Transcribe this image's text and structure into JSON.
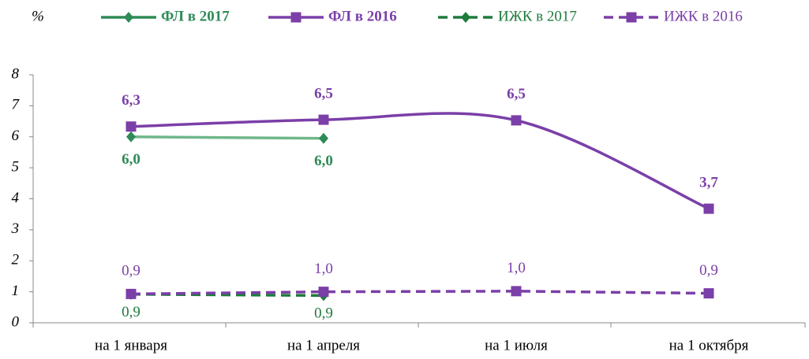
{
  "chart_data": {
    "type": "line",
    "y_label": "%",
    "categories": [
      "на 1 января",
      "на 1 апреля",
      "на 1 июля",
      "на 1 октября"
    ],
    "series": [
      {
        "name": "ФЛ в 2017",
        "color": "#2e8b57",
        "marker": "diamond",
        "dashed": false,
        "smooth": false,
        "values": [
          6.0,
          5.95,
          null,
          null
        ],
        "value_labels": [
          "6,0",
          "6,0",
          null,
          null
        ]
      },
      {
        "name": "ФЛ в 2016",
        "color": "#7b3fa8",
        "marker": "square",
        "dashed": false,
        "smooth": true,
        "values": [
          6.33,
          6.55,
          6.53,
          3.68
        ],
        "value_labels": [
          "6,3",
          "6,5",
          "6,5",
          "3,7"
        ]
      },
      {
        "name": "ИЖК в 2017",
        "color": "#1e7b3c",
        "marker": "diamond",
        "dashed": true,
        "smooth": false,
        "values": [
          0.92,
          0.88,
          null,
          null
        ],
        "value_labels": [
          "0,9",
          "0,9",
          null,
          null
        ]
      },
      {
        "name": "ИЖК в 2016",
        "color": "#7b3fa8",
        "marker": "square",
        "dashed": true,
        "smooth": false,
        "values": [
          0.93,
          1.0,
          1.02,
          0.95
        ],
        "value_labels": [
          "0,9",
          "1,0",
          "1,0",
          "0,9"
        ]
      }
    ],
    "ylim": [
      0,
      8
    ],
    "yticks": [
      0,
      1,
      2,
      3,
      4,
      5,
      6,
      7,
      8
    ],
    "grid": false
  }
}
